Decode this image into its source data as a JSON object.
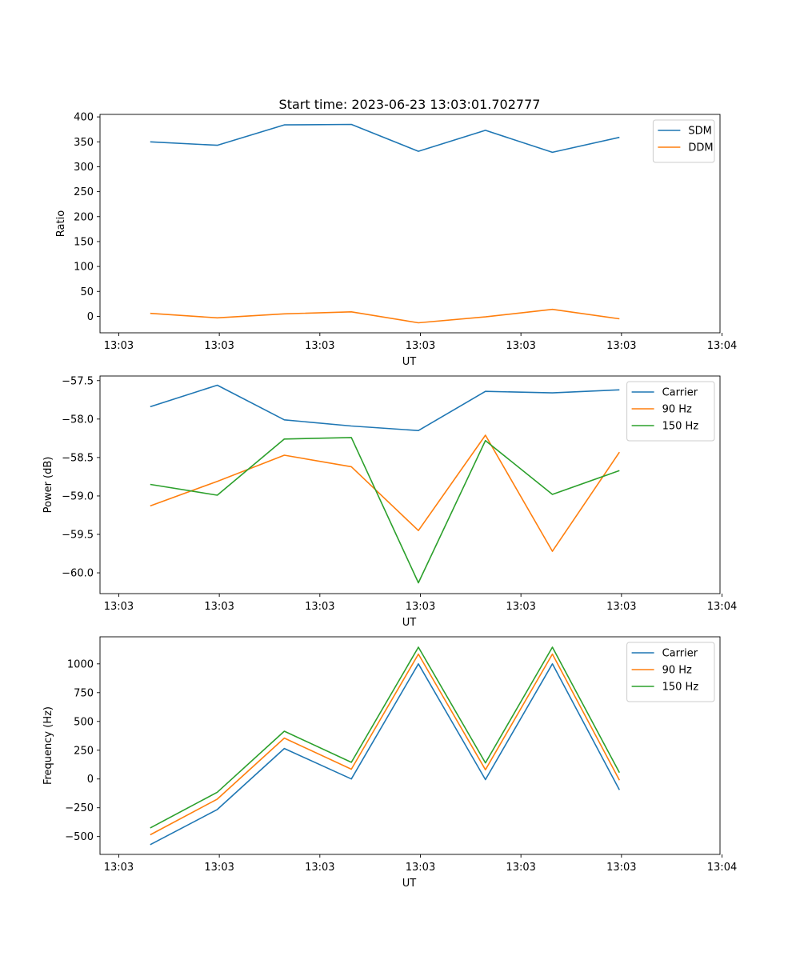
{
  "title": "Start time: 2023-06-23 13:03:01.702777",
  "colors": {
    "blue": "#1f77b4",
    "orange": "#ff7f0e",
    "green": "#2ca02c"
  },
  "chart_data": [
    {
      "type": "line",
      "xlabel": "UT",
      "ylabel": "Ratio",
      "x_tick_labels": [
        "13:03",
        "13:03",
        "13:03",
        "13:03",
        "13:03",
        "13:03",
        "13:04"
      ],
      "xlim": [
        -0.5,
        8.75
      ],
      "ylim": [
        -33,
        405
      ],
      "yticks": [
        0,
        50,
        100,
        150,
        200,
        250,
        300,
        350,
        400
      ],
      "ytick_labels": [
        "0",
        "50",
        "100",
        "150",
        "200",
        "250",
        "300",
        "350",
        "400"
      ],
      "legend": "top-right",
      "x": [
        0.25,
        1.25,
        2.25,
        3.25,
        4.25,
        5.25,
        6.25,
        7.25
      ],
      "series": [
        {
          "name": "SDM",
          "color": "#1f77b4",
          "values": [
            350,
            343,
            384,
            385,
            331,
            373,
            329,
            359
          ]
        },
        {
          "name": "DDM",
          "color": "#ff7f0e",
          "values": [
            6,
            -3,
            5,
            9,
            -13,
            -1,
            14,
            -5
          ]
        }
      ]
    },
    {
      "type": "line",
      "xlabel": "UT",
      "ylabel": "Power (dB)",
      "x_tick_labels": [
        "13:03",
        "13:03",
        "13:03",
        "13:03",
        "13:03",
        "13:03",
        "13:04"
      ],
      "xlim": [
        -0.5,
        8.75
      ],
      "ylim": [
        -60.27,
        -57.44
      ],
      "yticks": [
        -60.0,
        -59.5,
        -59.0,
        -58.5,
        -58.0,
        -57.5
      ],
      "ytick_labels": [
        "−60.0",
        "−59.5",
        "−59.0",
        "−58.5",
        "−58.0",
        "−57.5"
      ],
      "legend": "top-right",
      "x": [
        0.25,
        1.25,
        2.25,
        3.25,
        4.25,
        5.25,
        6.25,
        7.25
      ],
      "series": [
        {
          "name": "Carrier",
          "color": "#1f77b4",
          "values": [
            -57.84,
            -57.56,
            -58.01,
            -58.09,
            -58.15,
            -57.64,
            -57.66,
            -57.62
          ]
        },
        {
          "name": "90 Hz",
          "color": "#ff7f0e",
          "values": [
            -59.13,
            -58.81,
            -58.47,
            -58.62,
            -59.45,
            -58.21,
            -59.72,
            -58.43
          ]
        },
        {
          "name": "150 Hz",
          "color": "#2ca02c",
          "values": [
            -58.85,
            -58.99,
            -58.26,
            -58.24,
            -60.13,
            -58.28,
            -58.98,
            -58.67
          ]
        }
      ]
    },
    {
      "type": "line",
      "xlabel": "UT",
      "ylabel": "Frequency (Hz)",
      "x_tick_labels": [
        "13:03",
        "13:03",
        "13:03",
        "13:03",
        "13:03",
        "13:03",
        "13:04"
      ],
      "xlim": [
        -0.5,
        8.75
      ],
      "ylim": [
        -655,
        1235
      ],
      "yticks": [
        -500,
        -250,
        0,
        250,
        500,
        750,
        1000
      ],
      "ytick_labels": [
        "−500",
        "−250",
        "0",
        "250",
        "500",
        "750",
        "1000"
      ],
      "legend": "top-right",
      "x": [
        0.25,
        1.25,
        2.25,
        3.25,
        4.25,
        5.25,
        6.25,
        7.25
      ],
      "series": [
        {
          "name": "Carrier",
          "color": "#1f77b4",
          "values": [
            -570,
            -265,
            265,
            0,
            1000,
            -5,
            1000,
            -95
          ]
        },
        {
          "name": "90 Hz",
          "color": "#ff7f0e",
          "values": [
            -485,
            -175,
            355,
            85,
            1085,
            80,
            1085,
            -10
          ]
        },
        {
          "name": "150 Hz",
          "color": "#2ca02c",
          "values": [
            -425,
            -115,
            415,
            145,
            1145,
            140,
            1145,
            55
          ]
        }
      ]
    }
  ]
}
